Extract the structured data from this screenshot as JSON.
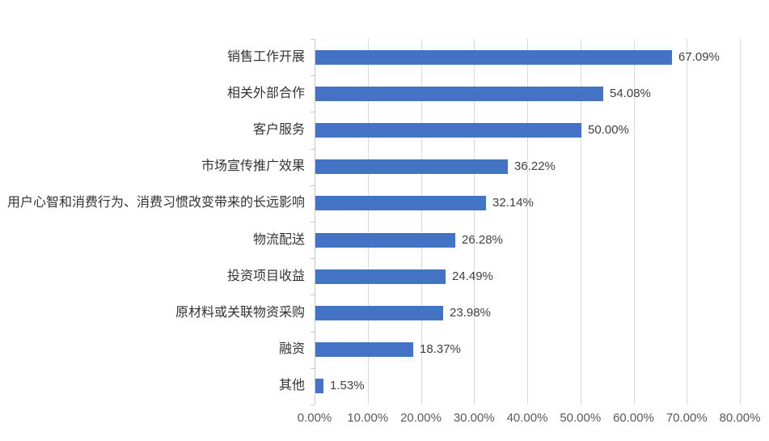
{
  "chart_data": {
    "type": "bar",
    "orientation": "horizontal",
    "title": "",
    "xlabel": "",
    "ylabel": "",
    "categories": [
      "销售工作开展",
      "相关外部合作",
      "客户服务",
      "市场宣传推广效果",
      "用户心智和消费行为、消费习惯改变带来的长远影响",
      "物流配送",
      "投资项目收益",
      "原材料或关联物资采购",
      "融资",
      "其他"
    ],
    "values": [
      67.09,
      54.08,
      50.0,
      36.22,
      32.14,
      26.28,
      24.49,
      23.98,
      18.37,
      1.53
    ],
    "data_labels": [
      "67.09%",
      "54.08%",
      "50.00%",
      "36.22%",
      "32.14%",
      "26.28%",
      "24.49%",
      "23.98%",
      "18.37%",
      "1.53%"
    ],
    "x_ticks": [
      "0.00%",
      "10.00%",
      "20.00%",
      "30.00%",
      "40.00%",
      "50.00%",
      "60.00%",
      "70.00%",
      "80.00%"
    ],
    "xlim": [
      0,
      80
    ],
    "grid": "vertical-only",
    "legend": "none",
    "bar_color": "#4472C4",
    "gridline_color": "#D9D9D9",
    "axis_color": "#C8C8C8"
  }
}
